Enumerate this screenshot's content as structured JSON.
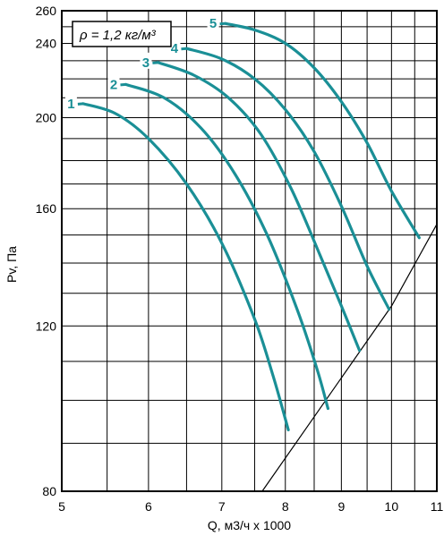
{
  "chart_data": {
    "type": "line",
    "xlabel": "Q, м3/ч х 1000",
    "ylabel": "Pv, Па",
    "x_scale": "log",
    "y_scale": "log",
    "xlim": [
      5,
      11
    ],
    "ylim": [
      80,
      260
    ],
    "x_ticks": [
      5,
      6,
      7,
      8,
      9,
      10,
      11
    ],
    "y_ticks": [
      80,
      120,
      160,
      200,
      240,
      260
    ],
    "grid": true,
    "annotation": "ρ = 1,2 кг/м³",
    "series_color": "#1a8f96",
    "series": [
      {
        "name": "1",
        "points": [
          [
            5.23,
            207
          ],
          [
            5.6,
            202
          ],
          [
            6.0,
            190
          ],
          [
            6.5,
            170
          ],
          [
            7.0,
            147
          ],
          [
            7.5,
            122
          ],
          [
            7.8,
            106
          ],
          [
            8.05,
            93
          ]
        ]
      },
      {
        "name": "2",
        "points": [
          [
            5.72,
            217
          ],
          [
            6.2,
            210
          ],
          [
            6.7,
            195
          ],
          [
            7.2,
            174
          ],
          [
            7.7,
            150
          ],
          [
            8.2,
            125
          ],
          [
            8.55,
            108
          ],
          [
            8.75,
            98
          ]
        ]
      },
      {
        "name": "3",
        "points": [
          [
            6.12,
            229
          ],
          [
            6.6,
            222
          ],
          [
            7.1,
            210
          ],
          [
            7.6,
            192
          ],
          [
            8.1,
            168
          ],
          [
            8.6,
            143
          ],
          [
            9.0,
            126
          ],
          [
            9.35,
            113
          ]
        ]
      },
      {
        "name": "4",
        "points": [
          [
            6.5,
            237
          ],
          [
            7.0,
            231
          ],
          [
            7.5,
            220
          ],
          [
            8.0,
            204
          ],
          [
            8.5,
            184
          ],
          [
            9.0,
            161
          ],
          [
            9.5,
            139
          ],
          [
            9.95,
            125
          ]
        ]
      },
      {
        "name": "5",
        "points": [
          [
            7.05,
            252
          ],
          [
            7.5,
            248
          ],
          [
            8.0,
            240
          ],
          [
            8.5,
            226
          ],
          [
            9.0,
            208
          ],
          [
            9.5,
            188
          ],
          [
            10.0,
            167
          ],
          [
            10.6,
            149
          ]
        ]
      }
    ],
    "system_line": [
      [
        7.62,
        80
      ],
      [
        10.0,
        126
      ],
      [
        11.0,
        154
      ]
    ]
  }
}
